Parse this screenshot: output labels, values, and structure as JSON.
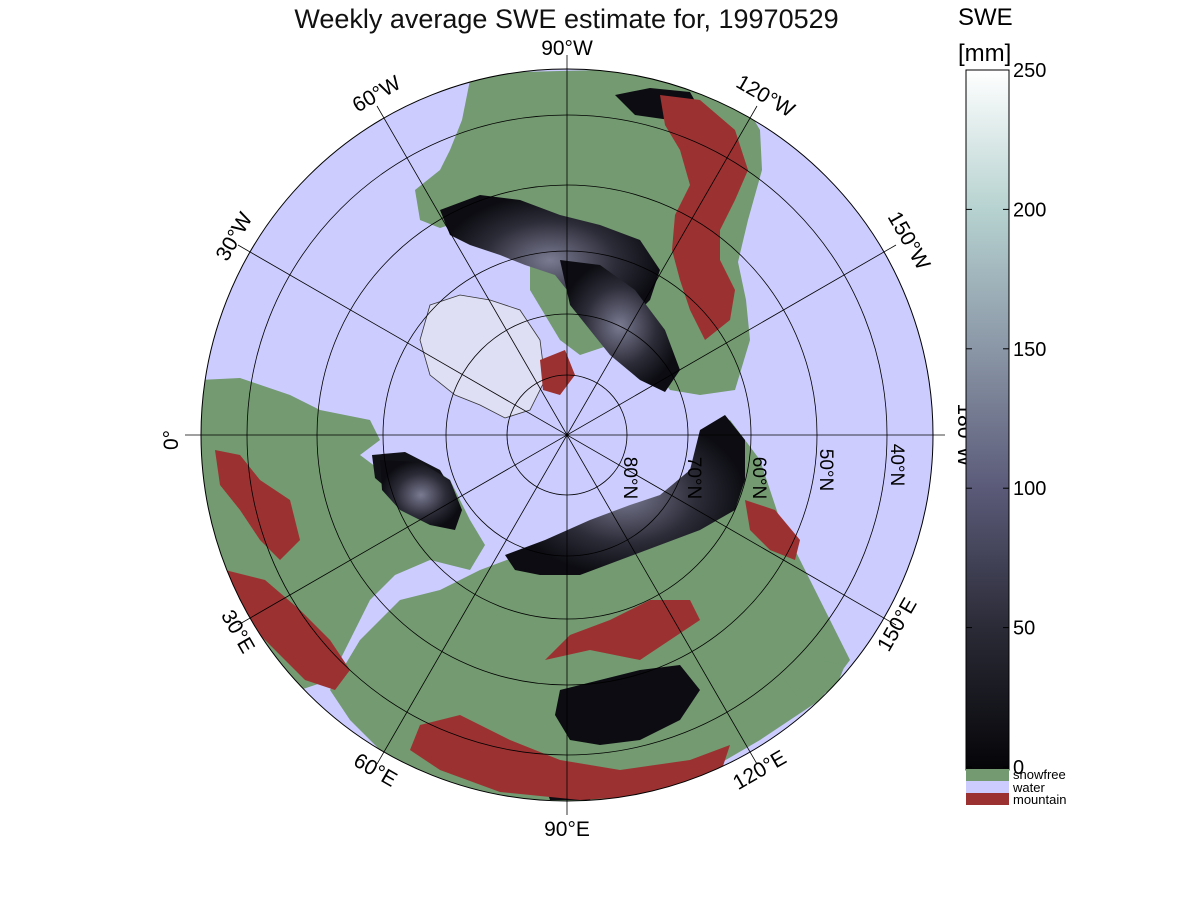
{
  "title": "Weekly average SWE estimate for, 19970529",
  "colorbar": {
    "label_line1": "SWE",
    "label_line2": "[mm]",
    "ticks": [
      "0",
      "50",
      "100",
      "150",
      "200",
      "250"
    ],
    "tick_values": [
      0,
      50,
      100,
      150,
      200,
      250
    ],
    "range": [
      0,
      250
    ],
    "gradient_colors": [
      "#050508",
      "#2a2a36",
      "#5a5a78",
      "#8a96a6",
      "#b6d2d0",
      "#ffffff"
    ],
    "legend": [
      {
        "label": "snowfree",
        "color": "#739a70"
      },
      {
        "label": "water",
        "color": "#ccccff"
      },
      {
        "label": "mountain",
        "color": "#9b3131"
      }
    ]
  },
  "map": {
    "projection": "north polar stereographic",
    "ocean_color": "#ccccff",
    "land_color": "#739a70",
    "mountain_color": "#9b3131",
    "longitude_labels": [
      "90°W",
      "120°W",
      "150°W",
      "180°W",
      "150°E",
      "120°E",
      "90°E",
      "60°E",
      "30°E",
      "0°",
      "30°W",
      "60°W"
    ],
    "latitude_labels": [
      "80°N",
      "70°N",
      "60°N",
      "50°N",
      "40°N"
    ]
  }
}
